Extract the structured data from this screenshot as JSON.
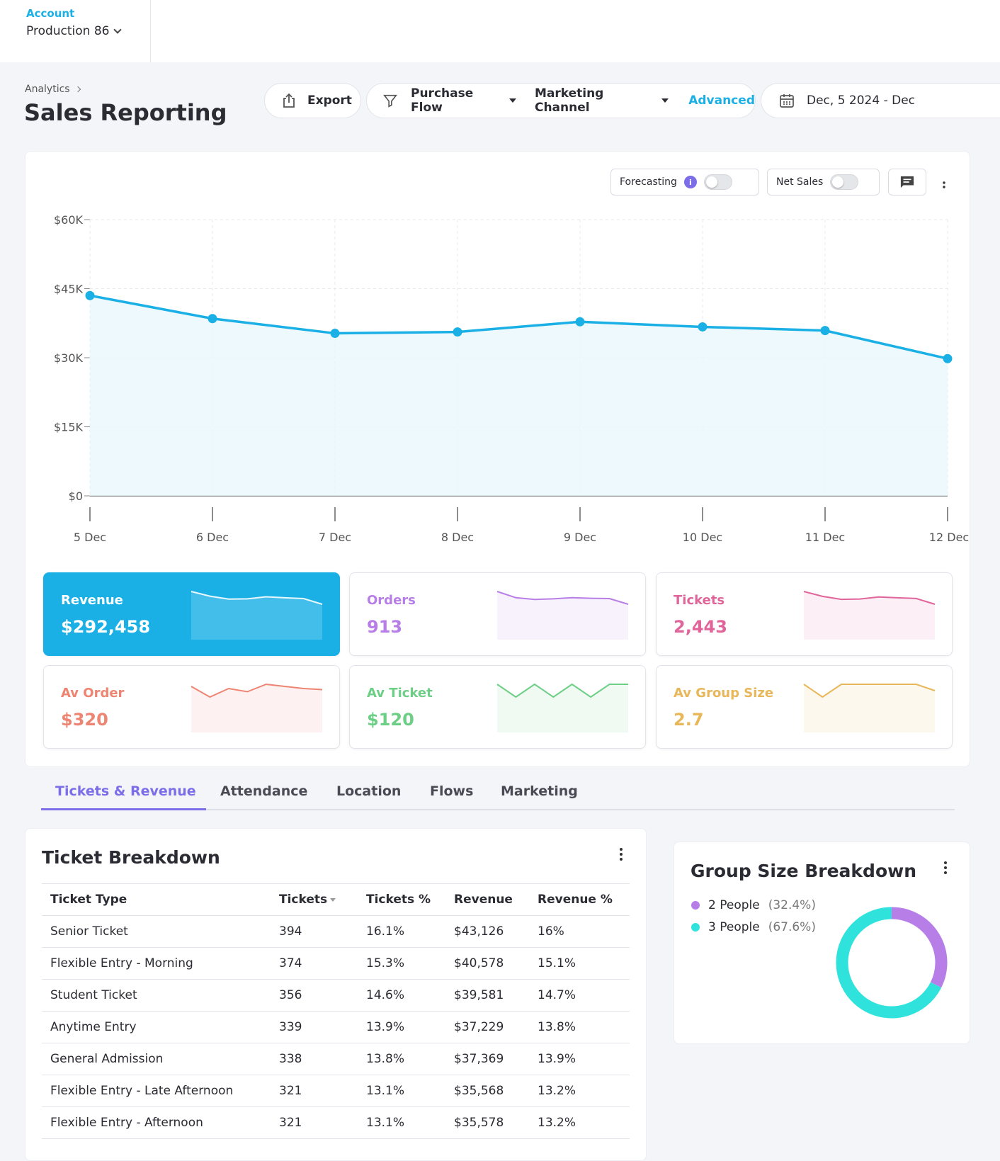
{
  "account": {
    "label": "Account",
    "value": "Production 86"
  },
  "breadcrumb": {
    "parent": "Analytics"
  },
  "page_title": "Sales Reporting",
  "toolbar": {
    "export_label": "Export",
    "purchase_flow_label": "Purchase Flow",
    "marketing_channel_label": "Marketing Channel",
    "advanced_label": "Advanced",
    "date_range": "Dec, 5 2024 - Dec"
  },
  "chart_controls": {
    "forecasting_label": "Forecasting",
    "forecasting_on": false,
    "net_sales_label": "Net Sales",
    "net_sales_on": false,
    "info_glyph": "i",
    "comment_icon": "comment-icon"
  },
  "chart_data": {
    "type": "area",
    "x": [
      "5 Dec",
      "6 Dec",
      "7 Dec",
      "8 Dec",
      "9 Dec",
      "10 Dec",
      "11 Dec",
      "12 Dec"
    ],
    "series": [
      {
        "values": [
          43500,
          38500,
          35300,
          35600,
          37800,
          36700,
          35900,
          29800
        ]
      }
    ],
    "y_ticks": [
      "$0",
      "$15K",
      "$30K",
      "$45K",
      "$60K"
    ],
    "ylim": [
      0,
      60000
    ],
    "grid": true,
    "color": "#1ab0e6"
  },
  "metrics": [
    {
      "label": "Revenue",
      "value": "$292,458",
      "color": "#1ab0e6",
      "active": true,
      "trend": [
        43500,
        38500,
        35300,
        35600,
        37800,
        36700,
        35900,
        29800
      ]
    },
    {
      "label": "Orders",
      "value": "913",
      "color": "#b77ee8",
      "active": false,
      "trend": [
        140,
        118,
        112,
        114,
        118,
        116,
        115,
        95
      ]
    },
    {
      "label": "Tickets",
      "value": "2,443",
      "color": "#e0659b",
      "active": false,
      "trend": [
        370,
        330,
        305,
        308,
        325,
        318,
        312,
        265
      ]
    },
    {
      "label": "Av Order",
      "value": "$320",
      "color": "#ee8472",
      "active": false,
      "trend": [
        320,
        310,
        318,
        315,
        322,
        320,
        318,
        317
      ]
    },
    {
      "label": "Av Ticket",
      "value": "$120",
      "color": "#6dcf86",
      "active": false,
      "trend": [
        120,
        119,
        120,
        119,
        120,
        119,
        120,
        120
      ]
    },
    {
      "label": "Av Group Size",
      "value": "2.7",
      "color": "#e8b75a",
      "active": false,
      "trend": [
        2.7,
        2.6,
        2.7,
        2.7,
        2.7,
        2.7,
        2.7,
        2.65
      ]
    }
  ],
  "tabs": [
    "Tickets & Revenue",
    "Attendance",
    "Location",
    "Flows",
    "Marketing"
  ],
  "ticket_breakdown": {
    "title": "Ticket Breakdown",
    "columns": [
      "Ticket Type",
      "Tickets",
      "Tickets %",
      "Revenue",
      "Revenue %"
    ],
    "rows": [
      [
        "Senior Ticket",
        "394",
        "16.1%",
        "$43,126",
        "16%"
      ],
      [
        "Flexible Entry - Morning",
        "374",
        "15.3%",
        "$40,578",
        "15.1%"
      ],
      [
        "Student Ticket",
        "356",
        "14.6%",
        "$39,581",
        "14.7%"
      ],
      [
        "Anytime Entry",
        "339",
        "13.9%",
        "$37,229",
        "13.8%"
      ],
      [
        "General Admission",
        "338",
        "13.8%",
        "$37,369",
        "13.9%"
      ],
      [
        "Flexible Entry - Late Afternoon",
        "321",
        "13.1%",
        "$35,568",
        "13.2%"
      ],
      [
        "Flexible Entry - Afternoon",
        "321",
        "13.1%",
        "$35,578",
        "13.2%"
      ]
    ]
  },
  "group_size": {
    "title": "Group Size Breakdown",
    "items": [
      {
        "label": "2 People",
        "pct": "(32.4%)",
        "value": 32.4,
        "color": "#b77ee8"
      },
      {
        "label": "3 People",
        "pct": "(67.6%)",
        "value": 67.6,
        "color": "#2fe3dc"
      }
    ]
  }
}
